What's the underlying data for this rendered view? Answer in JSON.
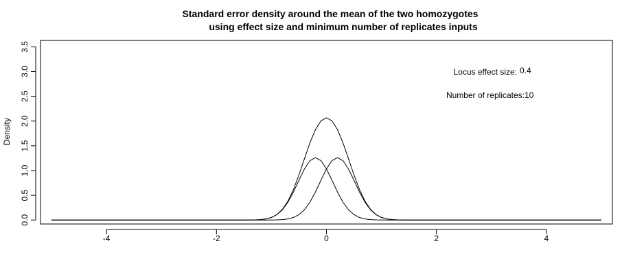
{
  "chart_data": {
    "type": "line",
    "title_lines": [
      "Standard error density around the mean of the two homozygotes",
      "using effect size and minimum number of replicates inputs"
    ],
    "xlabel": "",
    "ylabel": "Density",
    "xlim": [
      -5.2,
      5.2
    ],
    "ylim": [
      -0.08,
      3.63
    ],
    "x_ticks": [
      -4,
      -2,
      0,
      2,
      4
    ],
    "x_tick_labels": [
      "-4",
      "-2",
      "0",
      "2",
      "4"
    ],
    "y_ticks": [
      0.0,
      0.5,
      1.0,
      1.5,
      2.0,
      2.5,
      3.0,
      3.5
    ],
    "y_tick_labels": [
      "0.0",
      "0.5",
      "1.0",
      "1.5",
      "2.0",
      "2.5",
      "3.0",
      "3.5"
    ],
    "grid": false,
    "legend": "none",
    "x_range_data": [
      -5,
      5
    ],
    "series": [
      {
        "curve": "normal",
        "mean": -0.2,
        "sd": 0.3162,
        "scale": 1.0
      },
      {
        "curve": "normal",
        "mean": 0.2,
        "sd": 0.3162,
        "scale": 1.0
      },
      {
        "curve": "normal-sum",
        "means": [
          -0.2,
          0.2
        ],
        "sd": 0.3162
      }
    ],
    "annotations": [
      {
        "label": "Locus effect size:",
        "value": "0.4"
      },
      {
        "label": "Number of replicates:",
        "value": "10"
      }
    ],
    "line_color": "#000000"
  }
}
